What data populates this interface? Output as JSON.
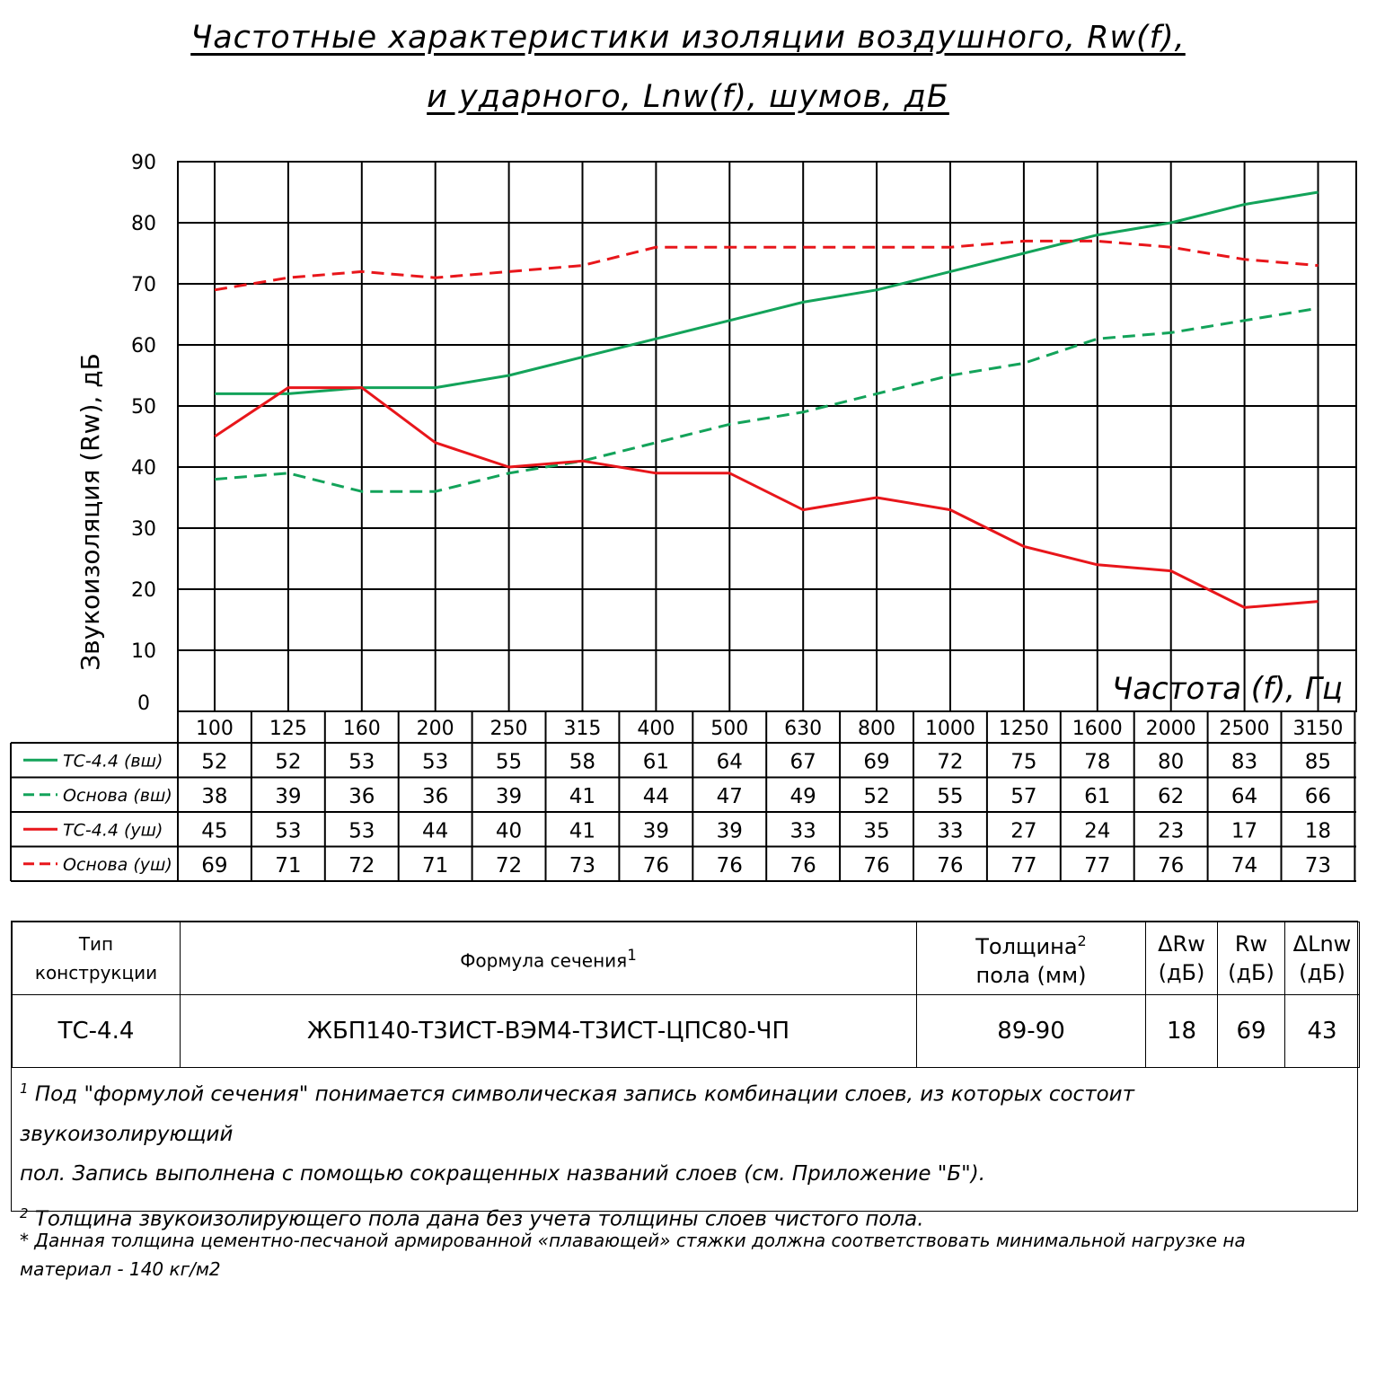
{
  "title_line1": "Частотные характеристики изоляции воздушного, Rw(f),",
  "title_line2": "и ударного, Lnw(f), шумов, дБ",
  "chart_data": {
    "type": "line",
    "ylabel": "Звукоизоляция (Rw), дБ",
    "xlabel": "Частота (f), Гц",
    "ylim": [
      0,
      90
    ],
    "yticks": [
      0,
      10,
      20,
      30,
      40,
      50,
      60,
      70,
      80,
      90
    ],
    "categories": [
      "100",
      "125",
      "160",
      "200",
      "250",
      "315",
      "400",
      "500",
      "630",
      "800",
      "1000",
      "1250",
      "1600",
      "2000",
      "2500",
      "3150"
    ],
    "grid": true,
    "series": [
      {
        "name": "ТС-4.4 (вш)",
        "color": "#13a35a",
        "dash": false,
        "values": [
          52,
          52,
          53,
          53,
          55,
          58,
          61,
          64,
          67,
          69,
          72,
          75,
          78,
          80,
          83,
          85
        ]
      },
      {
        "name": "Основа (вш)",
        "color": "#13a35a",
        "dash": true,
        "values": [
          38,
          39,
          36,
          36,
          39,
          41,
          44,
          47,
          49,
          52,
          55,
          57,
          61,
          62,
          64,
          66
        ]
      },
      {
        "name": "ТС-4.4 (уш)",
        "color": "#e8161b",
        "dash": false,
        "values": [
          45,
          53,
          53,
          44,
          40,
          41,
          39,
          39,
          33,
          35,
          33,
          27,
          24,
          23,
          17,
          18
        ]
      },
      {
        "name": "Основа (уш)",
        "color": "#e8161b",
        "dash": true,
        "values": [
          69,
          71,
          72,
          71,
          72,
          73,
          76,
          76,
          76,
          76,
          76,
          77,
          77,
          76,
          74,
          73
        ]
      }
    ]
  },
  "spec_table": {
    "headers": {
      "type_line1": "Тип",
      "type_line2": "конструкции",
      "formula": "Формула сечения",
      "formula_sup": "1",
      "thickness_line1": "Толщина",
      "thickness_sup": "2",
      "thickness_line2": "пола (мм)",
      "drw_line1": "ΔRw",
      "drw_line2": "(дБ)",
      "rw_line1": "Rw",
      "rw_line2": "(дБ)",
      "dlnw_line1": "ΔLnw",
      "dlnw_line2": "(дБ)"
    },
    "row": {
      "type": "ТС-4.4",
      "formula": "ЖБП140-Т3ИСТ-ВЭМ4-Т3ИСТ-ЦПС80-ЧП",
      "thickness": "89-90",
      "drw": "18",
      "rw": "69",
      "dlnw": "43"
    }
  },
  "notes": {
    "n1_mark": "1",
    "n1_text_a": "Под \"формулой сечения\" понимается символическая запись комбинации слоев, из которых состоит звукоизолирующий",
    "n1_text_b": "пол. Запись выполнена с помощью сокращенных названий слоев (см. Приложение \"Б\").",
    "n2_mark": "2",
    "n2_text": "Толщина звукоизолирующего пола дана без учета толщины слоев чистого пола."
  },
  "footnote": "* Данная толщина цементно-песчаной армированной «плавающей» стяжки должна соответствовать минимальной нагрузке на материал - 140 кг/м2"
}
